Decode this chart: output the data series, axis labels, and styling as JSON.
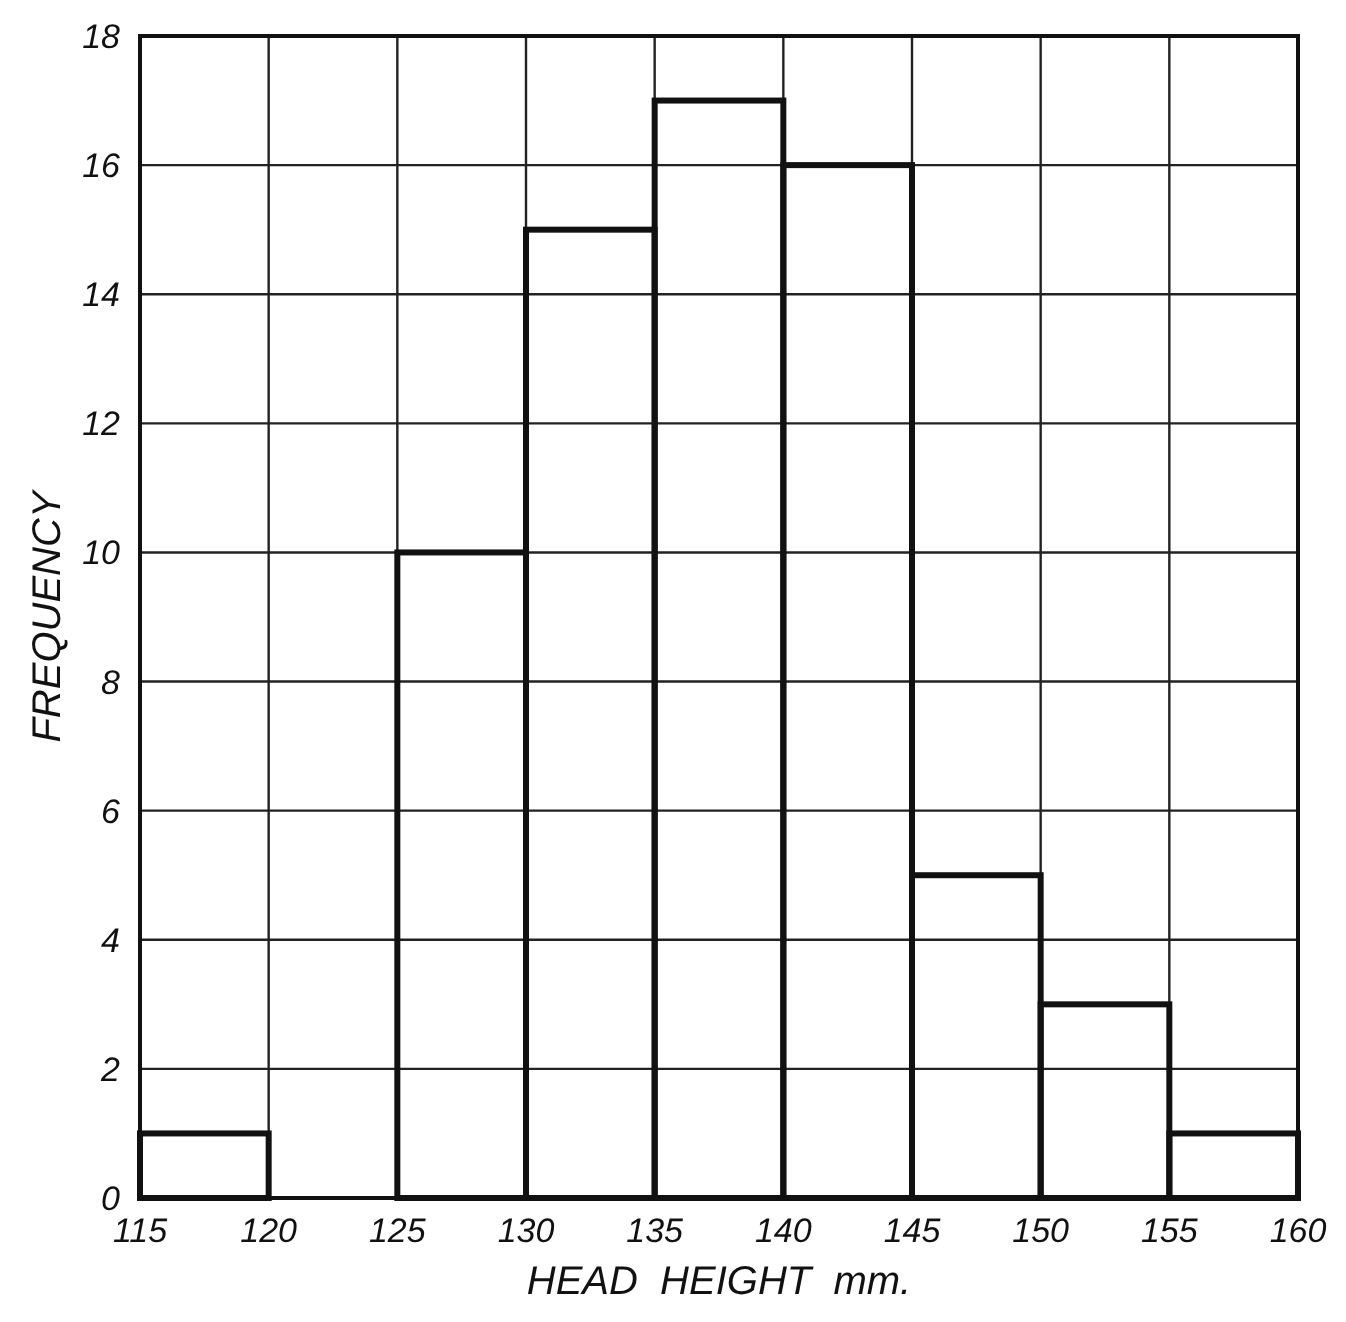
{
  "chart_data": {
    "type": "histogram",
    "xlabel": "HEAD  HEIGHT  mm.",
    "ylabel": "FREQUENCY",
    "bins": [
      115,
      120,
      125,
      130,
      135,
      140,
      145,
      150,
      155,
      160
    ],
    "values": [
      1,
      0,
      10,
      15,
      17,
      16,
      5,
      3,
      1
    ],
    "color": "#111111",
    "xlim": [
      115,
      160
    ],
    "xticks": [
      115,
      120,
      125,
      130,
      135,
      140,
      145,
      150,
      155,
      160
    ],
    "ylim": [
      0,
      18
    ],
    "yticks": [
      0,
      2,
      4,
      6,
      8,
      10,
      12,
      14,
      16,
      18
    ],
    "grid": true
  }
}
